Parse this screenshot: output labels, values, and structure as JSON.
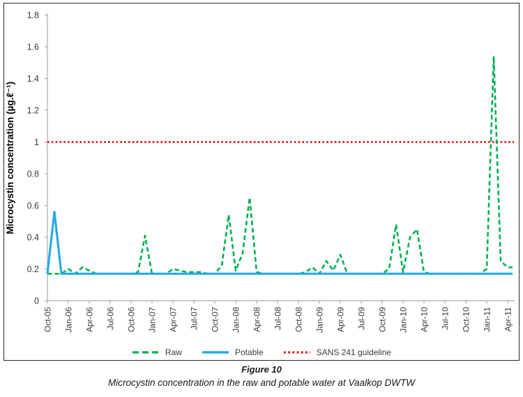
{
  "figure": {
    "caption_title": "Figure 10",
    "caption_text": "Microcystin concentration in the raw and potable water at Vaalkop DWTW"
  },
  "chart_data": {
    "type": "line",
    "title": "",
    "xlabel": "",
    "ylabel": "Microcystin concentration (µg.ℓ⁻¹)",
    "ylim": [
      0,
      1.8
    ],
    "ytick_step": 0.2,
    "ytick_labels": [
      "0",
      "0.2",
      "0.4",
      "0.6",
      "0.8",
      "1",
      "1.2",
      "1.4",
      "1.6",
      "1.8"
    ],
    "xtick_labels": [
      "Oct-05",
      "Jan-06",
      "Apr-06",
      "Jul-06",
      "Oct-06",
      "Jan-07",
      "Apr-07",
      "Jul-07",
      "Oct-07",
      "Jan-08",
      "Apr-08",
      "Jul-08",
      "Oct-08",
      "Jan-09",
      "Apr-09",
      "Jul-09",
      "Oct-09",
      "Jan-10",
      "Apr-10",
      "Jul-10",
      "Oct-10",
      "Jan-11",
      "Apr-11"
    ],
    "x_months": [
      "Oct-05",
      "Nov-05",
      "Dec-05",
      "Jan-06",
      "Feb-06",
      "Mar-06",
      "Apr-06",
      "May-06",
      "Jun-06",
      "Jul-06",
      "Aug-06",
      "Sep-06",
      "Oct-06",
      "Nov-06",
      "Dec-06",
      "Jan-07",
      "Feb-07",
      "Mar-07",
      "Apr-07",
      "May-07",
      "Jun-07",
      "Jul-07",
      "Aug-07",
      "Sep-07",
      "Oct-07",
      "Nov-07",
      "Dec-07",
      "Jan-08",
      "Feb-08",
      "Mar-08",
      "Apr-08",
      "May-08",
      "Jun-08",
      "Jul-08",
      "Aug-08",
      "Sep-08",
      "Oct-08",
      "Nov-08",
      "Dec-08",
      "Jan-09",
      "Feb-09",
      "Mar-09",
      "Apr-09",
      "May-09",
      "Jun-09",
      "Jul-09",
      "Aug-09",
      "Sep-09",
      "Oct-09",
      "Nov-09",
      "Dec-09",
      "Jan-10",
      "Feb-10",
      "Mar-10",
      "Apr-10",
      "May-10",
      "Jun-10",
      "Jul-10",
      "Aug-10",
      "Sep-10",
      "Oct-10",
      "Nov-10",
      "Dec-10",
      "Jan-11",
      "Feb-11",
      "Mar-11",
      "Apr-11"
    ],
    "series": [
      {
        "name": "Raw",
        "color": "#00B050",
        "style": "dashed",
        "values": [
          0.17,
          0.17,
          0.17,
          0.2,
          0.17,
          0.21,
          0.19,
          0.17,
          0.17,
          0.17,
          0.17,
          0.17,
          0.17,
          0.18,
          0.41,
          0.17,
          0.17,
          0.17,
          0.2,
          0.19,
          0.18,
          0.18,
          0.18,
          0.17,
          0.17,
          0.22,
          0.54,
          0.19,
          0.3,
          0.65,
          0.18,
          0.17,
          0.17,
          0.17,
          0.17,
          0.17,
          0.17,
          0.18,
          0.21,
          0.17,
          0.25,
          0.19,
          0.29,
          0.17,
          0.17,
          0.17,
          0.17,
          0.17,
          0.17,
          0.2,
          0.48,
          0.18,
          0.4,
          0.45,
          0.18,
          0.17,
          0.17,
          0.17,
          0.17,
          0.17,
          0.17,
          0.17,
          0.17,
          0.2,
          1.54,
          0.25,
          0.21
        ]
      },
      {
        "name": "Potable",
        "color": "#29ABE2",
        "style": "solid",
        "values": [
          0.17,
          0.56,
          0.17,
          0.17,
          0.17,
          0.17,
          0.17,
          0.17,
          0.17,
          0.17,
          0.17,
          0.17,
          0.17,
          0.17,
          0.17,
          0.17,
          0.17,
          0.17,
          0.17,
          0.17,
          0.17,
          0.17,
          0.17,
          0.17,
          0.17,
          0.17,
          0.17,
          0.17,
          0.17,
          0.17,
          0.17,
          0.17,
          0.17,
          0.17,
          0.17,
          0.17,
          0.17,
          0.17,
          0.17,
          0.17,
          0.17,
          0.17,
          0.17,
          0.17,
          0.17,
          0.17,
          0.17,
          0.17,
          0.17,
          0.17,
          0.17,
          0.17,
          0.17,
          0.17,
          0.17,
          0.17,
          0.17,
          0.17,
          0.17,
          0.17,
          0.17,
          0.17,
          0.17,
          0.17,
          0.17,
          0.17,
          0.17
        ]
      }
    ],
    "guideline": {
      "name": "SANS 241 guideline",
      "color": "#E00000",
      "style": "dotted",
      "value": 1.0
    },
    "legend_position": "bottom-inside",
    "grid": false,
    "colors": {
      "axis": "#ABABAB",
      "text": "#3B3B3B",
      "border": "#262626"
    }
  }
}
